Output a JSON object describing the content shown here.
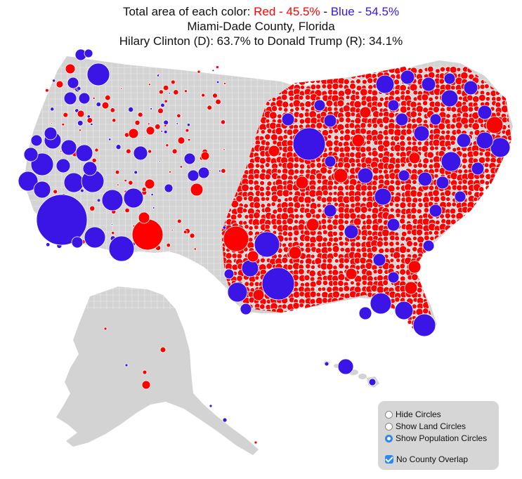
{
  "title": {
    "prefix": "Total area of each color: ",
    "red_label": "Red - 45.5%",
    "separator": " - ",
    "blue_label": "Blue - 54.5%",
    "county": "Miami-Dade County, Florida",
    "result": "Hilary Clinton (D): 63.7% to Donald Trump (R): 34.1%"
  },
  "colors": {
    "republican": "#ff0000",
    "democrat": "#3b14e6",
    "land": "#d3d3d3",
    "border": "#ffffff",
    "panel": "#d6d6d6",
    "accent": "#2e86f0"
  },
  "controls": {
    "options": [
      {
        "label": "Hide Circles",
        "selected": false
      },
      {
        "label": "Show Land Circles",
        "selected": false
      },
      {
        "label": "Show Population Circles",
        "selected": true
      }
    ],
    "no_overlap_label": "No County Overlap",
    "no_overlap_checked": true
  }
}
